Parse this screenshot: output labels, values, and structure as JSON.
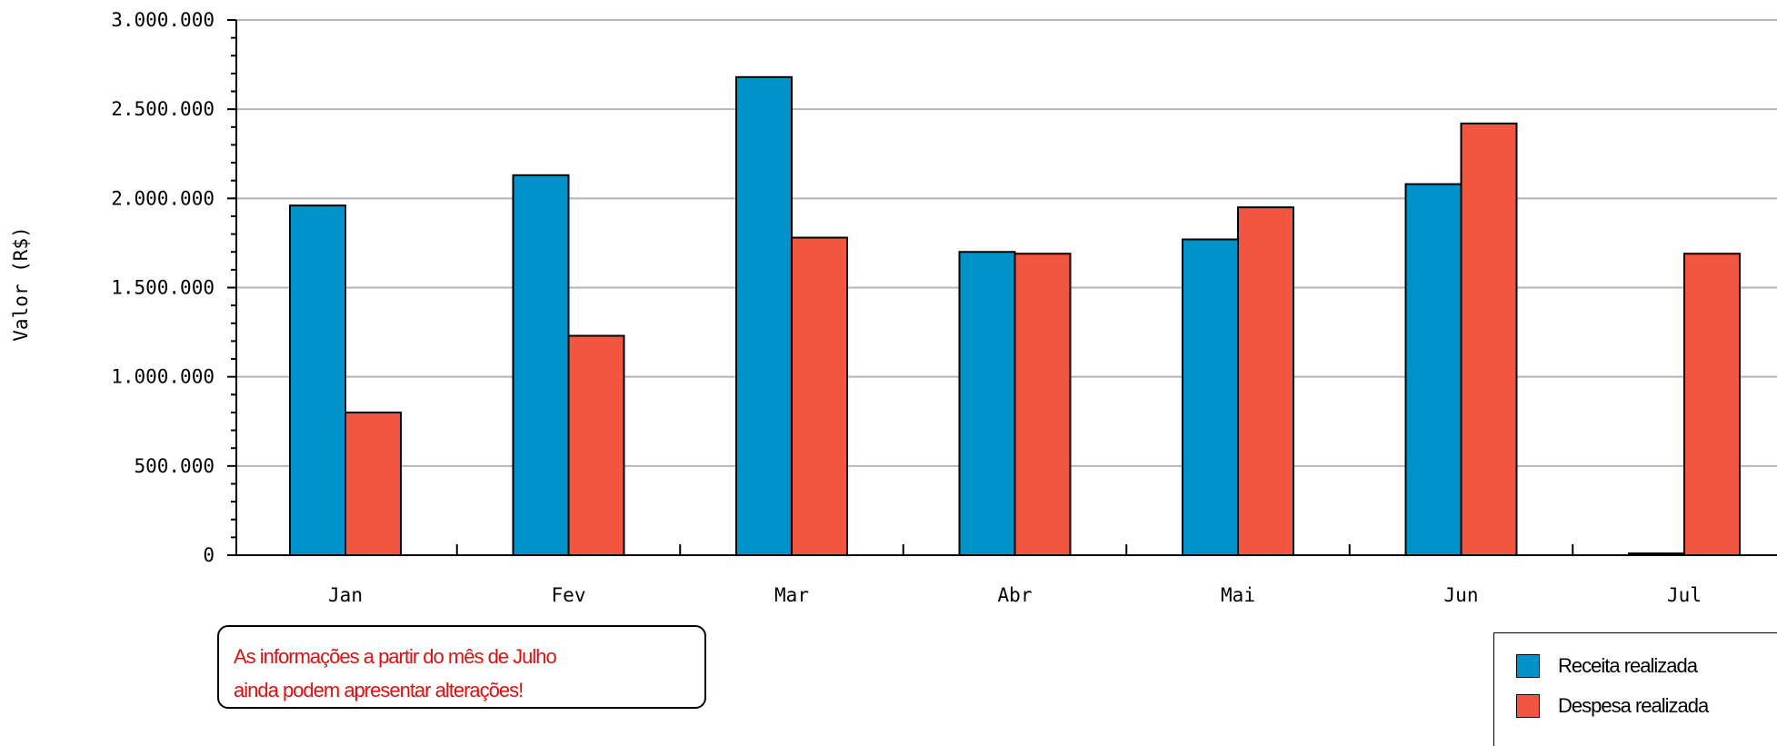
{
  "chart_data": {
    "type": "bar",
    "title": "",
    "xlabel": "",
    "ylabel": "Valor (R$)",
    "ylim": [
      0,
      3000000
    ],
    "yticks": [
      0,
      500000,
      1000000,
      1500000,
      2000000,
      2500000,
      3000000
    ],
    "ytick_labels": [
      "0",
      "500.000",
      "1.000.000",
      "1.500.000",
      "2.000.000",
      "2.500.000",
      "3.000.000"
    ],
    "categories": [
      "Jan",
      "Fev",
      "Mar",
      "Abr",
      "Mai",
      "Jun",
      "Jul"
    ],
    "grid": true,
    "legend_position": "bottom-right",
    "series": [
      {
        "name": "Receita realizada",
        "color": "#0093c9",
        "values": [
          1960000,
          2130000,
          2680000,
          1700000,
          1770000,
          2080000,
          10000
        ]
      },
      {
        "name": "Despesa realizada",
        "color": "#f25540",
        "values": [
          800000,
          1230000,
          1780000,
          1690000,
          1950000,
          2420000,
          1690000
        ]
      }
    ]
  },
  "note": {
    "line1": "As informações a partir do mês de Julho",
    "line2": "ainda podem apresentar alterações!"
  }
}
